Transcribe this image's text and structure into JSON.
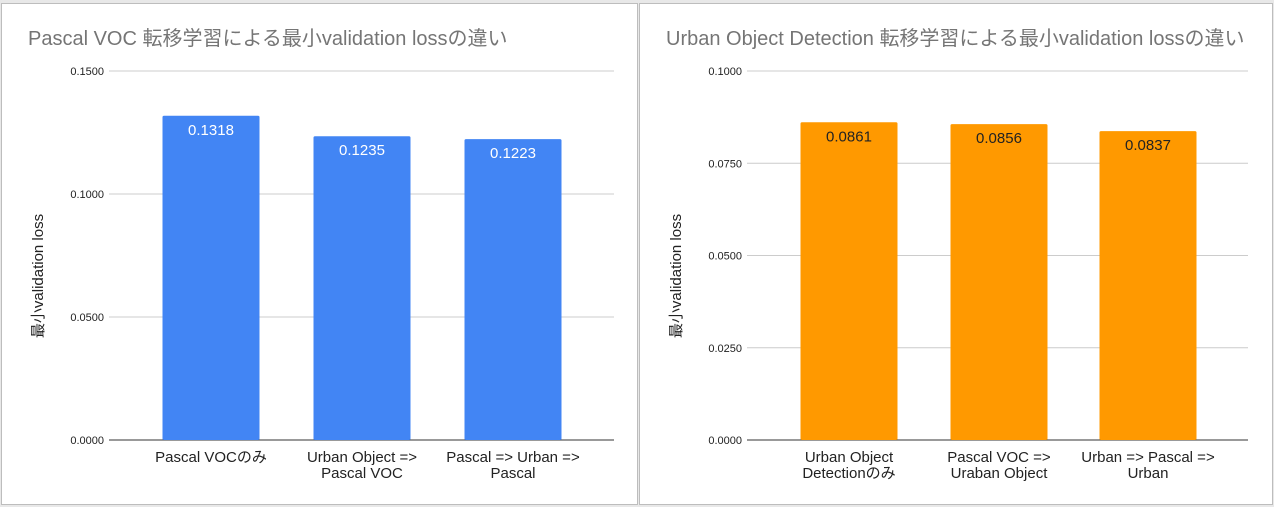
{
  "chart_data": [
    {
      "type": "bar",
      "title": "Pascal VOC 転移学習による最小validation lossの違い",
      "ylabel": "最小validation loss",
      "xlabel": "",
      "categories": [
        [
          "Pascal VOCのみ"
        ],
        [
          "Urban Object =>",
          "Pascal VOC"
        ],
        [
          "Pascal => Urban =>",
          "Pascal"
        ]
      ],
      "values": [
        0.1318,
        0.1235,
        0.1223
      ],
      "data_labels": [
        "0.1318",
        "0.1235",
        "0.1223"
      ],
      "ylim": [
        0,
        0.15
      ],
      "yticks": [
        "0.0000",
        "0.0500",
        "0.1000",
        "0.1500"
      ],
      "ytick_values": [
        0,
        0.05,
        0.1,
        0.15
      ],
      "grid": true,
      "color": "#4285f4",
      "label_color": "#ffffff"
    },
    {
      "type": "bar",
      "title": "Urban Object Detection 転移学習による最小validation lossの違い",
      "ylabel": "最小validation loss",
      "xlabel": "",
      "categories": [
        [
          "Urban Object",
          "Detectionのみ"
        ],
        [
          "Pascal VOC =>",
          "Uraban Object"
        ],
        [
          "Urban => Pascal =>",
          "Urban"
        ]
      ],
      "values": [
        0.0861,
        0.0856,
        0.0837
      ],
      "data_labels": [
        "0.0861",
        "0.0856",
        "0.0837"
      ],
      "ylim": [
        0,
        0.1
      ],
      "yticks": [
        "0.0000",
        "0.0250",
        "0.0500",
        "0.0750",
        "0.1000"
      ],
      "ytick_values": [
        0,
        0.025,
        0.05,
        0.075,
        0.1
      ],
      "grid": true,
      "color": "#ff9900",
      "label_color": "#222222"
    }
  ]
}
